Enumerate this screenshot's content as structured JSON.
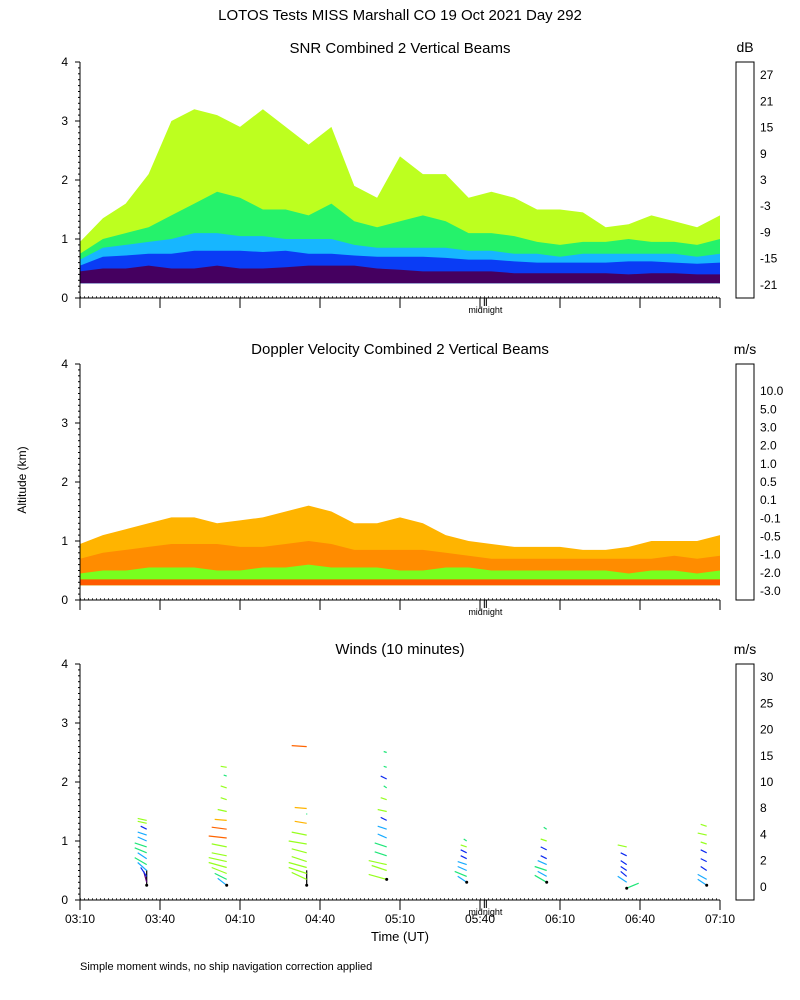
{
  "header": {
    "title": "LOTOS Tests MISS Marshall CO  19 Oct 2021 Day 292"
  },
  "chart_data": [
    {
      "type": "heatmap",
      "title": "SNR Combined 2 Vertical Beams",
      "ylabel": "Altitude (km)",
      "y_ticks": [
        "0",
        "1",
        "2",
        "3",
        "4"
      ],
      "ylim": [
        0,
        4
      ],
      "xlim": [
        "03:10",
        "07:10"
      ],
      "marker_label": "midnight",
      "colorbar": {
        "unit": "dB",
        "ticks": [
          "-21",
          "-15",
          "-9",
          "-3",
          "3",
          "9",
          "15",
          "21",
          "27"
        ],
        "colors": [
          "#bdff1f",
          "#25f26b",
          "#17b6ff",
          "#0a3cf5",
          "#5a08b8",
          "#450060",
          "#e81010",
          "#ff8c00",
          "#ffc800"
        ]
      },
      "layers": [
        {
          "value": "-21",
          "color": "#bdff1f",
          "top_km": [
            0.95,
            1.35,
            1.6,
            2.1,
            3.0,
            3.2,
            3.1,
            2.9,
            3.2,
            2.9,
            2.6,
            2.9,
            1.9,
            1.7,
            2.4,
            2.1,
            2.1,
            1.7,
            1.8,
            1.7,
            1.5,
            1.5,
            1.45,
            1.2,
            1.25,
            1.4,
            1.3,
            1.2,
            1.4
          ]
        },
        {
          "value": "-15",
          "color": "#25f26b",
          "top_km": [
            0.75,
            1.0,
            1.1,
            1.2,
            1.4,
            1.6,
            1.8,
            1.7,
            1.5,
            1.5,
            1.4,
            1.6,
            1.3,
            1.2,
            1.3,
            1.4,
            1.3,
            1.1,
            1.1,
            1.05,
            0.95,
            0.9,
            0.95,
            0.95,
            1.0,
            0.95,
            0.95,
            0.9,
            1.0
          ]
        },
        {
          "value": "-9",
          "color": "#17b6ff",
          "top_km": [
            0.65,
            0.85,
            0.9,
            0.95,
            1.0,
            1.1,
            1.1,
            1.05,
            1.05,
            1.0,
            1.0,
            1.0,
            0.9,
            0.85,
            0.85,
            0.85,
            0.85,
            0.8,
            0.8,
            0.75,
            0.75,
            0.7,
            0.75,
            0.75,
            0.75,
            0.75,
            0.75,
            0.7,
            0.75
          ]
        },
        {
          "value": "-3",
          "color": "#0a3cf5",
          "top_km": [
            0.55,
            0.7,
            0.72,
            0.75,
            0.75,
            0.8,
            0.8,
            0.8,
            0.78,
            0.8,
            0.75,
            0.75,
            0.72,
            0.7,
            0.7,
            0.7,
            0.68,
            0.65,
            0.65,
            0.62,
            0.6,
            0.6,
            0.6,
            0.6,
            0.62,
            0.62,
            0.6,
            0.58,
            0.6
          ]
        },
        {
          "value": "9",
          "color": "#450060",
          "top_km": [
            0.45,
            0.5,
            0.5,
            0.55,
            0.5,
            0.5,
            0.55,
            0.5,
            0.5,
            0.52,
            0.55,
            0.55,
            0.55,
            0.5,
            0.48,
            0.45,
            0.45,
            0.45,
            0.45,
            0.42,
            0.42,
            0.42,
            0.42,
            0.42,
            0.4,
            0.42,
            0.42,
            0.4,
            0.4
          ]
        }
      ],
      "floor_km": 0.25
    },
    {
      "type": "heatmap",
      "title": "Doppler Velocity Combined 2 Vertical Beams",
      "ylabel": "Altitude (km)",
      "y_ticks": [
        "0",
        "1",
        "2",
        "3",
        "4"
      ],
      "ylim": [
        0,
        4
      ],
      "xlim": [
        "03:10",
        "07:10"
      ],
      "marker_label": "midnight",
      "colorbar": {
        "unit": "m/s",
        "ticks": [
          "-3.0",
          "-2.0",
          "-1.0",
          "-0.5",
          "-0.1",
          "0.1",
          "0.5",
          "1.0",
          "2.0",
          "3.0",
          "5.0",
          "10.0"
        ],
        "colors": [
          "#f01010",
          "#ff5a00",
          "#ff8c00",
          "#ffb400",
          "#ffe600",
          "#fffb50",
          "#c8ff1e",
          "#78ff1e",
          "#1ee6ff",
          "#0a64f5",
          "#3c10d8",
          "#5a08a8",
          "#280030"
        ]
      },
      "layers": [
        {
          "value": "-0.5",
          "color": "#ffb400",
          "top_km": [
            0.95,
            1.1,
            1.2,
            1.3,
            1.4,
            1.4,
            1.3,
            1.35,
            1.4,
            1.5,
            1.6,
            1.5,
            1.3,
            1.3,
            1.4,
            1.3,
            1.1,
            1.0,
            0.95,
            0.9,
            0.9,
            0.9,
            0.85,
            0.85,
            0.9,
            1.0,
            1.0,
            1.0,
            1.1
          ]
        },
        {
          "value": "-1.0",
          "color": "#ff8c00",
          "top_km": [
            0.7,
            0.8,
            0.85,
            0.9,
            0.95,
            0.95,
            0.95,
            0.9,
            0.9,
            0.95,
            1.0,
            0.95,
            0.85,
            0.85,
            0.85,
            0.85,
            0.8,
            0.75,
            0.7,
            0.7,
            0.7,
            0.7,
            0.7,
            0.7,
            0.7,
            0.7,
            0.75,
            0.7,
            0.75
          ]
        },
        {
          "value": "0.5",
          "color": "#78ff1e",
          "top_km": [
            0.45,
            0.5,
            0.5,
            0.55,
            0.55,
            0.55,
            0.5,
            0.5,
            0.55,
            0.55,
            0.6,
            0.55,
            0.55,
            0.55,
            0.5,
            0.5,
            0.55,
            0.55,
            0.5,
            0.5,
            0.5,
            0.5,
            0.5,
            0.5,
            0.45,
            0.5,
            0.5,
            0.45,
            0.5
          ]
        },
        {
          "value": "-2.0",
          "color": "#ff5a00",
          "top_km": [
            0.35,
            0.35,
            0.35,
            0.35,
            0.35,
            0.35,
            0.35,
            0.35,
            0.35,
            0.35,
            0.35,
            0.35,
            0.35,
            0.35,
            0.35,
            0.35,
            0.35,
            0.35,
            0.35,
            0.35,
            0.35,
            0.35,
            0.35,
            0.35,
            0.35,
            0.35,
            0.35,
            0.35,
            0.35
          ]
        }
      ],
      "floor_km": 0.25
    },
    {
      "type": "scatter",
      "title": "Winds (10 minutes)",
      "ylabel": "Altitude (km)",
      "xlabel": "Time (UT)",
      "y_ticks": [
        "0",
        "1",
        "2",
        "3",
        "4"
      ],
      "ylim": [
        0,
        4
      ],
      "x_ticks": [
        "03:10",
        "03:40",
        "04:10",
        "04:40",
        "05:10",
        "05:40",
        "06:10",
        "06:40",
        "07:10"
      ],
      "xlim_min": [
        0,
        240
      ],
      "marker_label": "midnight",
      "colorbar": {
        "unit": "m/s",
        "ticks": [
          "0",
          "2",
          "4",
          "8",
          "10",
          "15",
          "20",
          "25",
          "30"
        ],
        "colors": [
          "#000000",
          "#5a0078",
          "#0a28f0",
          "#17aaff",
          "#1ee678",
          "#96ff1e",
          "#ffb400",
          "#ff6400",
          "#f01010"
        ]
      },
      "profiles": [
        {
          "t_min": 25,
          "barbs": [
            [
              0.25,
              0,
              1.5
            ],
            [
              0.3,
              -1,
              1.1
            ],
            [
              0.4,
              -2,
              0.9
            ],
            [
              0.5,
              -3,
              0.8
            ],
            [
              0.6,
              -4,
              0.7
            ],
            [
              0.7,
              -3,
              0.6
            ],
            [
              0.8,
              -4,
              0.5
            ],
            [
              0.9,
              -4,
              0.4
            ],
            [
              1.0,
              -3,
              0.4
            ],
            [
              1.1,
              -3,
              0.3
            ],
            [
              1.2,
              -2,
              0.3
            ],
            [
              1.3,
              -3,
              0.2
            ],
            [
              1.35,
              -3,
              0.2
            ]
          ]
        },
        {
          "t_min": 55,
          "barbs": [
            [
              0.25,
              -3,
              0.7
            ],
            [
              0.35,
              -4,
              0.6
            ],
            [
              0.45,
              -5,
              0.6
            ],
            [
              0.55,
              -6,
              0.5
            ],
            [
              0.65,
              -6,
              0.4
            ],
            [
              0.75,
              -5,
              0.3
            ],
            [
              0.9,
              -5,
              0.3
            ],
            [
              1.05,
              -6,
              0.2
            ],
            [
              1.2,
              -5,
              0.2
            ],
            [
              1.35,
              -4,
              0.1
            ],
            [
              1.5,
              -3,
              0.2
            ],
            [
              1.7,
              -2,
              0.2
            ],
            [
              1.9,
              -2,
              0.2
            ],
            [
              2.1,
              -1,
              0.1
            ],
            [
              2.25,
              -2,
              0.1
            ]
          ]
        },
        {
          "t_min": 85,
          "barbs": [
            [
              0.25,
              0,
              1.5
            ],
            [
              0.35,
              -5,
              0.7
            ],
            [
              0.45,
              -6,
              0.6
            ],
            [
              0.55,
              -6,
              0.5
            ],
            [
              0.65,
              -5,
              0.5
            ],
            [
              0.8,
              -5,
              0.4
            ],
            [
              0.95,
              -6,
              0.3
            ],
            [
              1.1,
              -5,
              0.3
            ],
            [
              1.3,
              -4,
              0.2
            ],
            [
              1.45,
              0,
              0.1
            ],
            [
              1.55,
              -4,
              0.1
            ],
            [
              2.6,
              -5,
              0.1
            ]
          ]
        },
        {
          "t_min": 115,
          "barbs": [
            [
              0.35,
              -6,
              0.5
            ],
            [
              0.5,
              -5,
              0.5
            ],
            [
              0.6,
              -6,
              0.4
            ],
            [
              0.75,
              -4,
              0.4
            ],
            [
              0.9,
              -4,
              0.4
            ],
            [
              1.05,
              -3,
              0.4
            ],
            [
              1.2,
              -3,
              0.3
            ],
            [
              1.35,
              -2,
              0.3
            ],
            [
              1.5,
              -3,
              0.2
            ],
            [
              1.7,
              -2,
              0.2
            ],
            [
              1.9,
              -1,
              0.2
            ],
            [
              2.05,
              -2,
              0.3
            ],
            [
              2.25,
              -1,
              0.1
            ],
            [
              2.5,
              -1,
              0.1
            ]
          ]
        },
        {
          "t_min": 145,
          "barbs": [
            [
              0.3,
              -3,
              0.6
            ],
            [
              0.4,
              -4,
              0.5
            ],
            [
              0.5,
              -3,
              0.4
            ],
            [
              0.6,
              -3,
              0.3
            ],
            [
              0.7,
              -2,
              0.3
            ],
            [
              0.8,
              -2,
              0.3
            ],
            [
              0.9,
              -2,
              0.2
            ],
            [
              1.0,
              -1,
              0.2
            ]
          ]
        },
        {
          "t_min": 175,
          "barbs": [
            [
              0.3,
              -4,
              0.7
            ],
            [
              0.4,
              -3,
              0.5
            ],
            [
              0.5,
              -4,
              0.4
            ],
            [
              0.6,
              -3,
              0.4
            ],
            [
              0.7,
              -2,
              0.3
            ],
            [
              0.85,
              -2,
              0.3
            ],
            [
              1.0,
              -2,
              0.2
            ],
            [
              1.2,
              -1,
              0.2
            ]
          ]
        },
        {
          "t_min": 205,
          "barbs": [
            [
              0.2,
              4,
              0.5
            ],
            [
              0.3,
              -3,
              0.6
            ],
            [
              0.4,
              -2,
              0.5
            ],
            [
              0.5,
              -2,
              0.4
            ],
            [
              0.6,
              -2,
              0.4
            ],
            [
              0.75,
              -2,
              0.3
            ],
            [
              0.9,
              -3,
              0.2
            ]
          ]
        },
        {
          "t_min": 235,
          "barbs": [
            [
              0.25,
              -3,
              0.6
            ],
            [
              0.35,
              -3,
              0.5
            ],
            [
              0.5,
              -2,
              0.4
            ],
            [
              0.65,
              -2,
              0.3
            ],
            [
              0.8,
              -2,
              0.3
            ],
            [
              0.95,
              -2,
              0.2
            ],
            [
              1.1,
              -3,
              0.2
            ],
            [
              1.25,
              -2,
              0.2
            ]
          ]
        }
      ]
    }
  ],
  "footer": {
    "note": "Simple moment winds, no ship navigation correction applied"
  }
}
